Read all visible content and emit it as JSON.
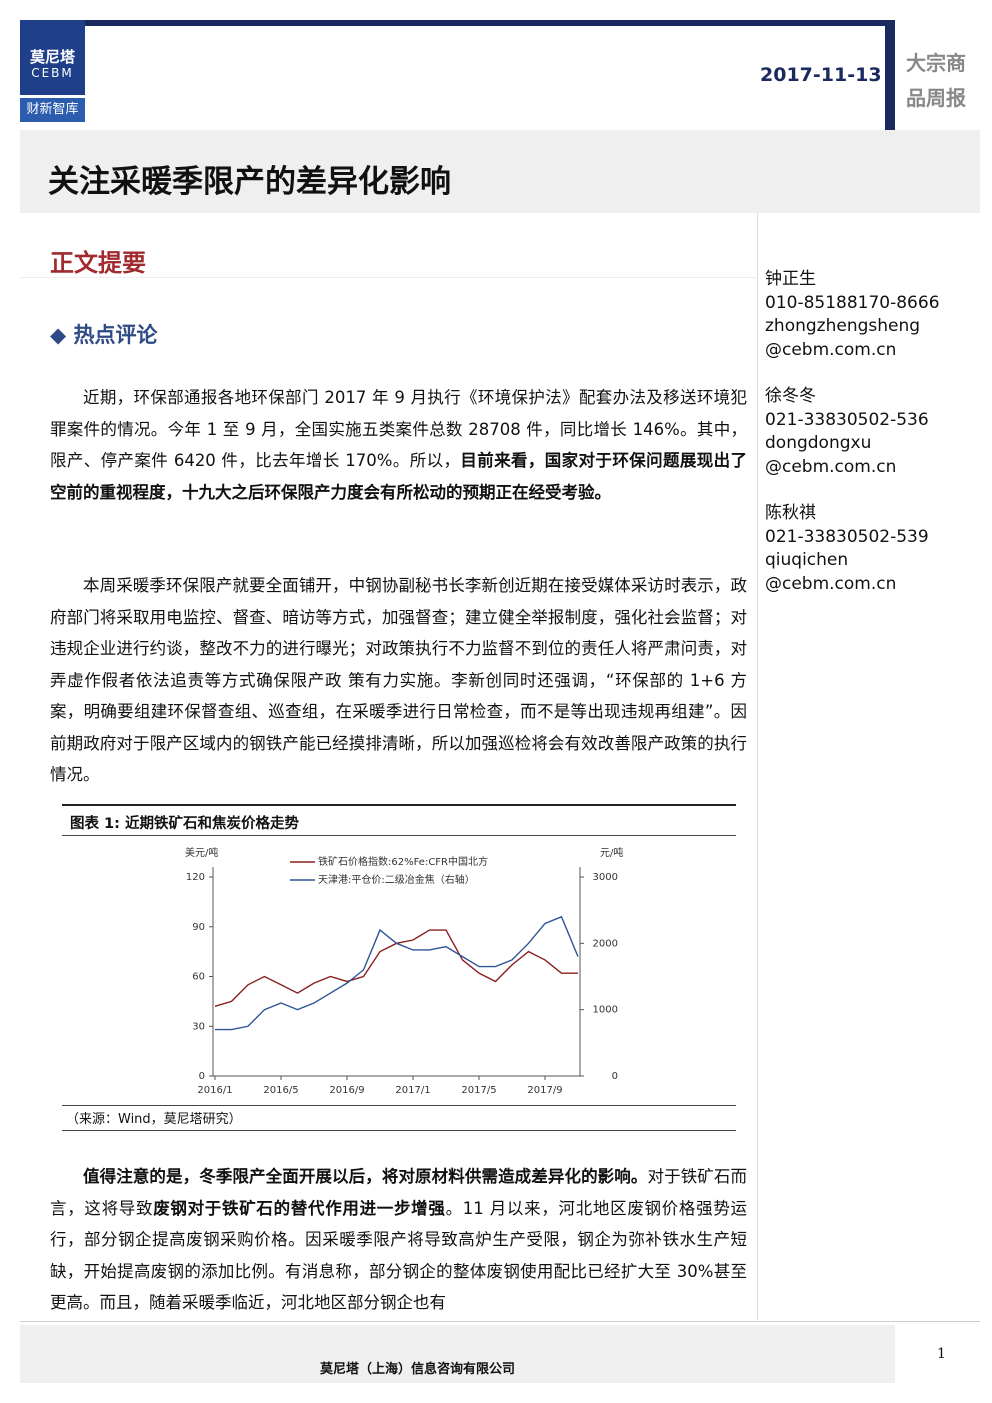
{
  "header": {
    "logo_cn": "莫尼塔",
    "logo_en": "CEBM",
    "logo_sub": "财新智库",
    "date": "2017-11-13",
    "report_type": "大宗商品周报"
  },
  "title": "关注采暖季限产的差异化影响",
  "section": "正文提要",
  "subsection": "热点评论",
  "body": [
    [
      {
        "text": "近期，环保部通报各地环保部门 2017 年 9 月执行《环境保护法》配套办法及移送环境犯罪案件的情况。今年 1 至 9 月，全国实施五类案件总数 28708 件，同比增长 146%。其中，限产、停产案件 6420 件，比去年增长 170%。所以，",
        "bold": false
      },
      {
        "text": "目前来看，国家对于环保问题展现出了空前的重视程度，十九大之后环保限产力度会有所松动的预期正在经受考验。",
        "bold": true
      }
    ],
    [
      {
        "text": "本周采暖季环保限产就要全面铺开，中钢协副秘书长李新创近期在接受媒体采访时表示，政府部门将采取用电监控、督查、暗访等方式，加强督查；建立健全举报制度，强化社会监督；对违规企业进行约谈，整改不力的进行曝光；对政策执行不力监督不到位的责任人将严肃问责，对弄虚作假者依法追责等方式确保限产政 策有力实施。李新创同时还强调，“环保部的 1+6 方案，明确要组建环保督查组、巡查组，在采暖季进行日常检查，而不是等出现违规再组建”。因前期政府对于限产区域内的钢铁产能已经摸排清晰，所以加强巡检将会有效改善限产政策的执行情况。",
        "bold": false
      }
    ]
  ],
  "body_after": [
    [
      {
        "text": "值得注意的是，冬季限产全面开展以后，将对原材料供需造成差异化的影响。",
        "bold": true
      },
      {
        "text": "对于铁矿石而言，这将导致",
        "bold": false
      },
      {
        "text": "废钢对于铁矿石的替代作用进一步增强",
        "bold": true
      },
      {
        "text": "。11 月以来，河北地区废钢价格强势运行，部分钢企提高废钢采购价格。因采暖季限产将导致高炉生产受限，钢企为弥补铁水生产短缺，开始提高废钢的添加比例。有消息称，部分钢企的整体废钢使用配比已经扩大至 30%甚至更高。而且，随着采暖季临近，河北地区部分钢企也有",
        "bold": false
      }
    ]
  ],
  "contacts": [
    {
      "name": "钟正生",
      "phone": "010-85188170-8666",
      "email": [
        "zhongzhengsheng",
        "@cebm.com.cn"
      ]
    },
    {
      "name": "徐冬冬",
      "phone": "021-33830502-536",
      "email": [
        "dongdongxu",
        "@cebm.com.cn"
      ]
    },
    {
      "name": "陈秋祺",
      "phone": "021-33830502-539",
      "email": [
        "qiuqichen",
        "@cebm.com.cn"
      ]
    }
  ],
  "chart_data": {
    "type": "line",
    "title": "图表 1: 近期铁矿石和焦炭价格走势",
    "source": "（来源：Wind，莫尼塔研究）",
    "y_unit": "美元/吨",
    "y2_unit": "元/吨",
    "categories": [
      "2016/1",
      null,
      null,
      null,
      "2016/5",
      null,
      null,
      null,
      "2016/9",
      null,
      null,
      null,
      "2017/1",
      null,
      null,
      null,
      "2017/5",
      null,
      null,
      null,
      "2017/9",
      null,
      null
    ],
    "series": [
      {
        "name": "铁矿石价格指数:62%Fe:CFR中国北方",
        "color": "#8b1e1e",
        "values": [
          42,
          45,
          55,
          60,
          55,
          50,
          56,
          60,
          57,
          60,
          75,
          80,
          82,
          88,
          88,
          70,
          62,
          57,
          67,
          75,
          70,
          62,
          62
        ]
      },
      {
        "name": "天津港:平仓价:二级冶金焦（右轴）",
        "color": "#2f5597",
        "axis": "y2",
        "values": [
          700,
          700,
          750,
          1000,
          1100,
          1000,
          1100,
          1250,
          1400,
          1600,
          2200,
          2000,
          1900,
          1900,
          1950,
          1800,
          1650,
          1650,
          1750,
          2000,
          2300,
          2400,
          1800
        ]
      }
    ],
    "ylim": [
      0,
      120
    ],
    "yticks": [
      0,
      30,
      60,
      90,
      120
    ],
    "y2lim": [
      0,
      3000
    ],
    "y2ticks": [
      0,
      1000,
      2000,
      3000
    ]
  },
  "footer": {
    "company": "莫尼塔（上海）信息咨询有限公司",
    "page": "1"
  }
}
